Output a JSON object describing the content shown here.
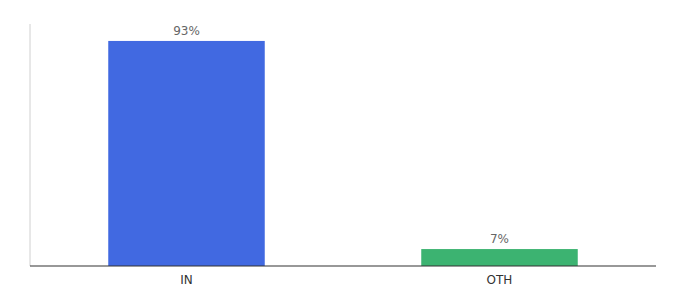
{
  "chart_data": {
    "type": "bar",
    "categories": [
      "IN",
      "OTH"
    ],
    "values": [
      93,
      7
    ],
    "value_labels": [
      "93%",
      "7%"
    ],
    "colors": [
      "#4169E1",
      "#3CB371"
    ],
    "ylim": [
      0,
      100
    ],
    "data_labels": true,
    "tick_labels": "x",
    "grid": false
  }
}
